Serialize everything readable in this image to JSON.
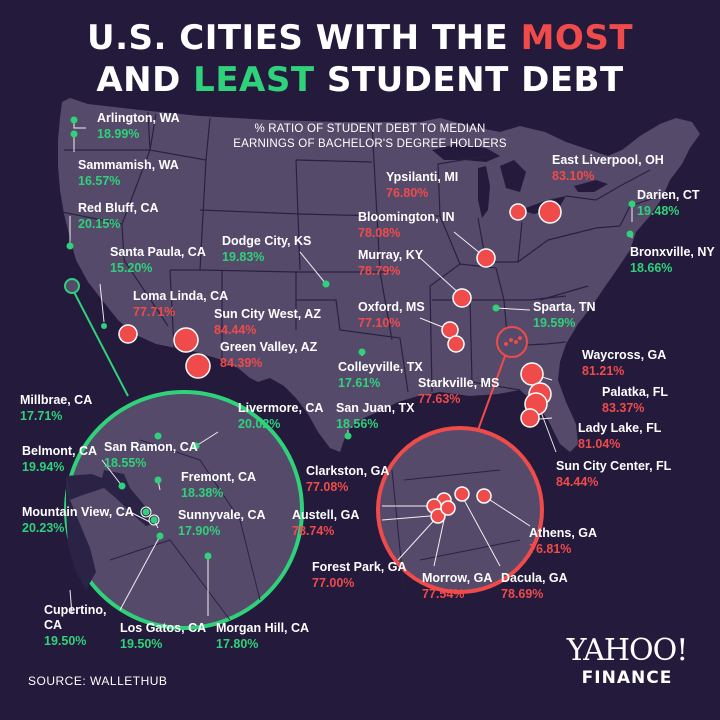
{
  "title": {
    "line1": "U.S. CITIES WITH THE ",
    "most": "MOST",
    "line2_and": "AND ",
    "least": "LEAST",
    "line2_rest": " STUDENT DEBT"
  },
  "subtitle": {
    "line1": "% RATIO OF STUDENT DEBT TO MEDIAN",
    "line2": "EARNINGS OF BACHELOR'S DEGREE HOLDERS"
  },
  "source": "SOURCE:  WALLETHUB",
  "logo": {
    "line1": "YAHOO!",
    "line2": "FINANCE"
  },
  "colors": {
    "background": "#231a3c",
    "land": "#564a6a",
    "border": "#2a2142",
    "most": "#ef4b4b",
    "least": "#2fd17a"
  },
  "cities": [
    {
      "id": "arlington-wa",
      "name": "Arlington, WA",
      "value": "18.99%",
      "group": "least"
    },
    {
      "id": "sammamish-wa",
      "name": "Sammamish, WA",
      "value": "16.57%",
      "group": "least"
    },
    {
      "id": "red-bluff-ca",
      "name": "Red Bluff, CA",
      "value": "20.15%",
      "group": "least"
    },
    {
      "id": "santa-paula-ca",
      "name": "Santa Paula, CA",
      "value": "15.20%",
      "group": "least"
    },
    {
      "id": "loma-linda-ca",
      "name": "Loma Linda, CA",
      "value": "77.71%",
      "group": "most"
    },
    {
      "id": "sun-city-west-az",
      "name": "Sun City West, AZ",
      "value": "84.44%",
      "group": "most"
    },
    {
      "id": "green-valley-az",
      "name": "Green Valley, AZ",
      "value": "84.39%",
      "group": "most"
    },
    {
      "id": "dodge-city-ks",
      "name": "Dodge City, KS",
      "value": "19.83%",
      "group": "least"
    },
    {
      "id": "colleyville-tx",
      "name": "Colleyville, TX",
      "value": "17.61%",
      "group": "least"
    },
    {
      "id": "san-juan-tx",
      "name": "San Juan, TX",
      "value": "18.56%",
      "group": "least"
    },
    {
      "id": "ypsilanti-mi",
      "name": "Ypsilanti, MI",
      "value": "76.80%",
      "group": "most"
    },
    {
      "id": "east-liverpool-oh",
      "name": "East Liverpool, OH",
      "value": "83.10%",
      "group": "most"
    },
    {
      "id": "darien-ct",
      "name": "Darien, CT",
      "value": "19.48%",
      "group": "least"
    },
    {
      "id": "bronxville-ny",
      "name": "Bronxville, NY",
      "value": "18.66%",
      "group": "least"
    },
    {
      "id": "bloomington-in",
      "name": "Bloomington, IN",
      "value": "78.08%",
      "group": "most"
    },
    {
      "id": "murray-ky",
      "name": "Murray, KY",
      "value": "78.79%",
      "group": "most"
    },
    {
      "id": "oxford-ms",
      "name": "Oxford, MS",
      "value": "77.10%",
      "group": "most"
    },
    {
      "id": "sparta-tn",
      "name": "Sparta, TN",
      "value": "19.59%",
      "group": "least"
    },
    {
      "id": "starkville-ms",
      "name": "Starkville, MS",
      "value": "77.63%",
      "group": "most"
    },
    {
      "id": "waycross-ga",
      "name": "Waycross, GA",
      "value": "81.21%",
      "group": "most"
    },
    {
      "id": "palatka-fl",
      "name": "Palatka, FL",
      "value": "83.37%",
      "group": "most"
    },
    {
      "id": "lady-lake-fl",
      "name": "Lady Lake, FL",
      "value": "81.04%",
      "group": "most"
    },
    {
      "id": "sun-city-center-fl",
      "name": "Sun City Center, FL",
      "value": "84.44%",
      "group": "most"
    },
    {
      "id": "millbrae-ca",
      "name": "Millbrae, CA",
      "value": "17.71%",
      "group": "least"
    },
    {
      "id": "belmont-ca",
      "name": "Belmont, CA",
      "value": "19.94%",
      "group": "least"
    },
    {
      "id": "san-ramon-ca",
      "name": "San Ramon, CA",
      "value": "18.55%",
      "group": "least"
    },
    {
      "id": "livermore-ca",
      "name": "Livermore, CA",
      "value": "20.02%",
      "group": "least"
    },
    {
      "id": "fremont-ca",
      "name": "Fremont, CA",
      "value": "18.38%",
      "group": "least"
    },
    {
      "id": "mountain-view-ca",
      "name": "Mountain View, CA",
      "value": "20.23%",
      "group": "least"
    },
    {
      "id": "sunnyvale-ca",
      "name": "Sunnyvale, CA",
      "value": "17.90%",
      "group": "least"
    },
    {
      "id": "cupertino-ca",
      "name": "Cupertino, CA",
      "value": "19.50%",
      "group": "least"
    },
    {
      "id": "los-gatos-ca",
      "name": "Los Gatos, CA",
      "value": "19.50%",
      "group": "least"
    },
    {
      "id": "morgan-hill-ca",
      "name": "Morgan Hill, CA",
      "value": "17.80%",
      "group": "least"
    },
    {
      "id": "clarkston-ga",
      "name": "Clarkston, GA",
      "value": "77.08%",
      "group": "most"
    },
    {
      "id": "austell-ga",
      "name": "Austell, GA",
      "value": "78.74%",
      "group": "most"
    },
    {
      "id": "forest-park-ga",
      "name": "Forest Park, GA",
      "value": "77.00%",
      "group": "most"
    },
    {
      "id": "morrow-ga",
      "name": "Morrow, GA",
      "value": "77.54%",
      "group": "most"
    },
    {
      "id": "dacula-ga",
      "name": "Dacula, GA",
      "value": "78.69%",
      "group": "most"
    },
    {
      "id": "athens-ga",
      "name": "Athens, GA",
      "value": "76.81%",
      "group": "most"
    }
  ]
}
